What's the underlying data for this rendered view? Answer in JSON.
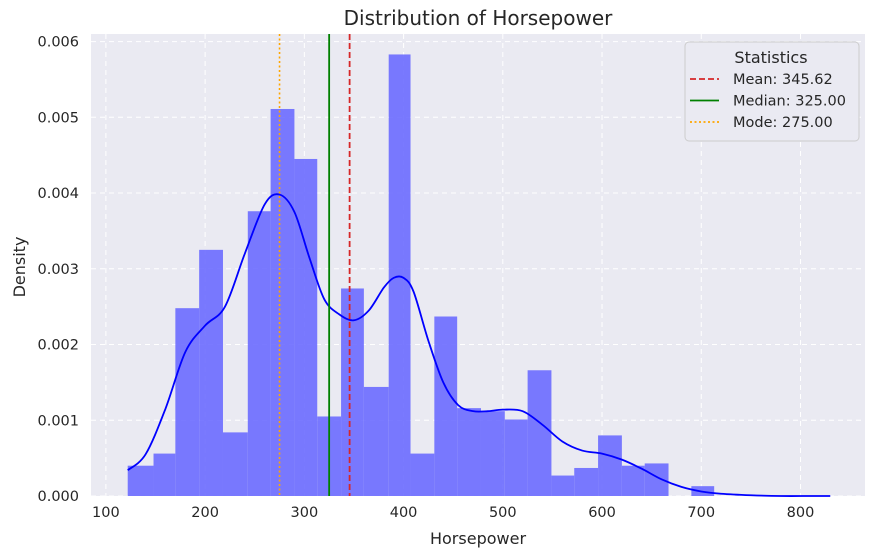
{
  "chart_data": {
    "type": "histogram",
    "title": "Distribution of Horsepower",
    "xlabel": "Horsepower",
    "ylabel": "Density",
    "xlim": [
      85,
      865
    ],
    "ylim": [
      0,
      0.0061
    ],
    "xticks": [
      100,
      200,
      300,
      400,
      500,
      600,
      700,
      800
    ],
    "yticks": [
      0.0,
      0.001,
      0.002,
      0.003,
      0.004,
      0.005,
      0.006
    ],
    "ytick_labels": [
      "0.000",
      "0.001",
      "0.002",
      "0.003",
      "0.004",
      "0.005",
      "0.006"
    ],
    "grid": true,
    "bins": [
      {
        "x0": 122,
        "x1": 148,
        "density": 0.0004
      },
      {
        "x0": 148,
        "x1": 170,
        "density": 0.00056
      },
      {
        "x0": 170,
        "x1": 194,
        "density": 0.00248
      },
      {
        "x0": 194,
        "x1": 218,
        "density": 0.00325
      },
      {
        "x0": 218,
        "x1": 243,
        "density": 0.00084
      },
      {
        "x0": 243,
        "x1": 266,
        "density": 0.00376
      },
      {
        "x0": 266,
        "x1": 290,
        "density": 0.00511
      },
      {
        "x0": 290,
        "x1": 313,
        "density": 0.00445
      },
      {
        "x0": 313,
        "x1": 337,
        "density": 0.00105
      },
      {
        "x0": 337,
        "x1": 360,
        "density": 0.00274
      },
      {
        "x0": 360,
        "x1": 385,
        "density": 0.00144
      },
      {
        "x0": 385,
        "x1": 407,
        "density": 0.00583
      },
      {
        "x0": 407,
        "x1": 431,
        "density": 0.00056
      },
      {
        "x0": 431,
        "x1": 454,
        "density": 0.00237
      },
      {
        "x0": 454,
        "x1": 478,
        "density": 0.00116
      },
      {
        "x0": 478,
        "x1": 502,
        "density": 0.00112
      },
      {
        "x0": 502,
        "x1": 525,
        "density": 0.00101
      },
      {
        "x0": 525,
        "x1": 549,
        "density": 0.00166
      },
      {
        "x0": 549,
        "x1": 572,
        "density": 0.00027
      },
      {
        "x0": 572,
        "x1": 596,
        "density": 0.00037
      },
      {
        "x0": 596,
        "x1": 620,
        "density": 0.0008
      },
      {
        "x0": 620,
        "x1": 643,
        "density": 0.0004
      },
      {
        "x0": 643,
        "x1": 667,
        "density": 0.00043
      },
      {
        "x0": 667,
        "x1": 690,
        "density": 0.0
      },
      {
        "x0": 690,
        "x1": 713,
        "density": 0.00013
      }
    ],
    "kde": {
      "name": "KDE",
      "x": [
        122,
        140,
        160,
        180,
        200,
        220,
        240,
        260,
        275,
        290,
        305,
        320,
        335,
        350,
        365,
        380,
        390,
        400,
        410,
        425,
        440,
        455,
        470,
        485,
        500,
        520,
        540,
        560,
        580,
        600,
        620,
        640,
        660,
        680,
        700,
        720,
        750,
        780,
        810,
        830
      ],
      "y": [
        0.00034,
        0.00055,
        0.00115,
        0.0019,
        0.00225,
        0.0025,
        0.0032,
        0.00385,
        0.00398,
        0.00375,
        0.00315,
        0.0026,
        0.0024,
        0.00232,
        0.00245,
        0.00275,
        0.00288,
        0.00288,
        0.0027,
        0.00205,
        0.0015,
        0.0012,
        0.00112,
        0.00112,
        0.00114,
        0.00112,
        0.00094,
        0.00072,
        0.0006,
        0.00056,
        0.00048,
        0.00036,
        0.00022,
        0.00012,
        6e-05,
        3e-05,
        1e-05,
        0.0,
        0.0,
        0.0
      ]
    },
    "reference_lines": [
      {
        "label": "Mean: 345.62",
        "value": 345.62,
        "color": "#d62728",
        "style": "dashed"
      },
      {
        "label": "Median: 325.00",
        "value": 325.0,
        "color": "#008000",
        "style": "solid"
      },
      {
        "label": "Mode: 275.00",
        "value": 275.0,
        "color": "#ffa500",
        "style": "dotted"
      }
    ],
    "legend": {
      "title": "Statistics",
      "placement": "top-right"
    },
    "colors": {
      "bars": "#6b6bff",
      "kde": "#0000ff",
      "background": "#eaeaf2",
      "grid": "#ffffff",
      "text": "#262626"
    }
  }
}
